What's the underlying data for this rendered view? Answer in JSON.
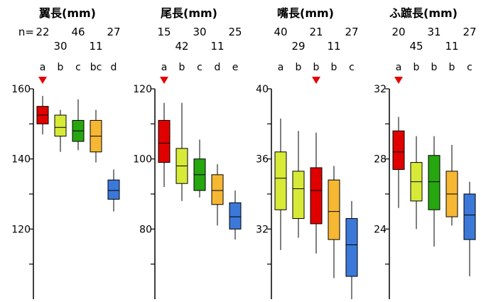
{
  "n_prefix": "n=",
  "marker_color": "#e60000",
  "colors": {
    "red": "#e00000",
    "yellowgreen": "#d7ea38",
    "green": "#26a60f",
    "orange": "#f6b733",
    "blue": "#3c78d8"
  },
  "chart_data": [
    {
      "type": "box",
      "title": "翼長(mm)",
      "yticks": [
        "160",
        "140",
        "120"
      ],
      "ylim": [
        100,
        160
      ],
      "n": [
        "22",
        "30",
        "46",
        "11",
        "27"
      ],
      "groups": [
        "a",
        "b",
        "c",
        "bc",
        "d"
      ],
      "marker_index": 0,
      "series": [
        {
          "color": "red",
          "whisker_low": 147,
          "q1": 150,
          "median": 152.5,
          "q3": 155,
          "whisker_high": 158
        },
        {
          "color": "yellowgreen",
          "whisker_low": 142,
          "q1": 146.5,
          "median": 149,
          "q3": 152.5,
          "whisker_high": 154
        },
        {
          "color": "green",
          "whisker_low": 142.5,
          "q1": 145,
          "median": 148,
          "q3": 151,
          "whisker_high": 157
        },
        {
          "color": "orange",
          "whisker_low": 139,
          "q1": 142,
          "median": 146.5,
          "q3": 151,
          "whisker_high": 154
        },
        {
          "color": "blue",
          "whisker_low": 125,
          "q1": 128.5,
          "median": 131,
          "q3": 134,
          "whisker_high": 137
        }
      ]
    },
    {
      "type": "box",
      "title": "尾長(mm)",
      "yticks": [
        "120",
        "100",
        "80"
      ],
      "ylim": [
        60,
        120
      ],
      "n": [
        "15",
        "42",
        "30",
        "11",
        "25"
      ],
      "groups": [
        "a",
        "b",
        "c",
        "d",
        "e"
      ],
      "marker_index": 0,
      "series": [
        {
          "color": "red",
          "whisker_low": 92,
          "q1": 99,
          "median": 104.5,
          "q3": 111,
          "whisker_high": 116
        },
        {
          "color": "yellowgreen",
          "whisker_low": 88,
          "q1": 93,
          "median": 98,
          "q3": 103,
          "whisker_high": 116
        },
        {
          "color": "green",
          "whisker_low": 89,
          "q1": 91,
          "median": 95.5,
          "q3": 100,
          "whisker_high": 105.5
        },
        {
          "color": "orange",
          "whisker_low": 81,
          "q1": 87,
          "median": 91,
          "q3": 95.5,
          "whisker_high": 98.5
        },
        {
          "color": "blue",
          "whisker_low": 77,
          "q1": 80,
          "median": 83.5,
          "q3": 87.5,
          "whisker_high": 91
        }
      ]
    },
    {
      "type": "box",
      "title": "嘴長(mm)",
      "yticks": [
        "40",
        "36",
        "32"
      ],
      "ylim": [
        28,
        40
      ],
      "n": [
        "40",
        "29",
        "21",
        "11",
        "27"
      ],
      "groups": [
        "a",
        "b",
        "b",
        "b",
        "c"
      ],
      "marker_index": 2,
      "series": [
        {
          "color": "yellowgreen",
          "whisker_low": 30.8,
          "q1": 33.1,
          "median": 34.9,
          "q3": 36.4,
          "whisker_high": 38.3
        },
        {
          "color": "yellowgreen",
          "whisker_low": 31.5,
          "q1": 32.6,
          "median": 34.3,
          "q3": 35.3,
          "whisker_high": 37.6
        },
        {
          "color": "red",
          "whisker_low": 30.6,
          "q1": 32.3,
          "median": 34.2,
          "q3": 35.5,
          "whisker_high": 37.5
        },
        {
          "color": "orange",
          "whisker_low": 29.2,
          "q1": 31.4,
          "median": 33.0,
          "q3": 34.8,
          "whisker_high": 35.6
        },
        {
          "color": "blue",
          "whisker_low": 27.5,
          "q1": 29.3,
          "median": 31.1,
          "q3": 32.6,
          "whisker_high": 33.6
        }
      ]
    },
    {
      "type": "box",
      "title": "ふ蹠長(mm)",
      "yticks": [
        "32",
        "28",
        "24"
      ],
      "ylim": [
        20,
        32
      ],
      "n": [
        "20",
        "45",
        "31",
        "11",
        "27"
      ],
      "groups": [
        "a",
        "b",
        "b",
        "b",
        "c"
      ],
      "marker_index": 0,
      "series": [
        {
          "color": "red",
          "whisker_low": 25.2,
          "q1": 27.4,
          "median": 28.4,
          "q3": 29.6,
          "whisker_high": 30.4
        },
        {
          "color": "yellowgreen",
          "whisker_low": 24.0,
          "q1": 25.6,
          "median": 26.7,
          "q3": 27.8,
          "whisker_high": 29.3
        },
        {
          "color": "green",
          "whisker_low": 23.0,
          "q1": 25.1,
          "median": 26.7,
          "q3": 28.2,
          "whisker_high": 29.3
        },
        {
          "color": "orange",
          "whisker_low": 24.2,
          "q1": 24.7,
          "median": 26.0,
          "q3": 27.3,
          "whisker_high": 28.8
        },
        {
          "color": "blue",
          "whisker_low": 21.3,
          "q1": 23.4,
          "median": 24.8,
          "q3": 26.0,
          "whisker_high": 26.7
        }
      ]
    }
  ]
}
